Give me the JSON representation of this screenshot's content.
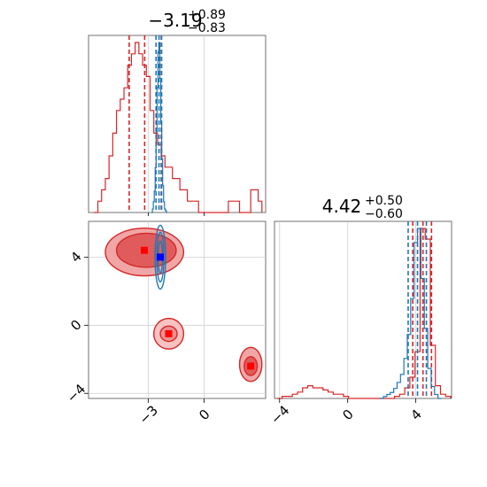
{
  "chart_data": {
    "type": "corner",
    "parameters": [
      {
        "value_text": "−3.19",
        "upper_text": "+0.89",
        "lower_text": "−0.83",
        "range": [
          -6.2,
          3.3
        ],
        "ticks": [
          -3,
          0
        ],
        "tick_labels": [
          "−3",
          "0"
        ]
      },
      {
        "value_text": "4.42",
        "upper_text": "+0.50",
        "lower_text": "−0.60",
        "range": [
          -4.3,
          6.1
        ],
        "ticks": [
          -4,
          0,
          4
        ],
        "tick_labels": [
          "−4",
          "0",
          "4"
        ]
      }
    ],
    "grid": true,
    "series": [
      {
        "color": "#d62728",
        "hist1": {
          "x": [
            -5.8,
            -5.6,
            -5.4,
            -5.2,
            -5.0,
            -4.8,
            -4.6,
            -4.4,
            -4.2,
            -4.0,
            -3.8,
            -3.6,
            -3.4,
            -3.2,
            -3.0,
            -2.8,
            -2.6,
            -2.4,
            -2.2,
            -2.0,
            -1.8,
            -1.6,
            -1.4,
            -1.2,
            -1.0,
            -0.8,
            -0.6,
            -0.4,
            -0.2,
            0.0,
            0.2,
            0.4,
            0.6,
            0.8,
            1.0,
            1.2,
            1.4,
            1.6,
            1.8,
            2.0,
            2.2,
            2.4,
            2.6,
            2.8,
            3.0
          ],
          "values": [
            0.0,
            0.01,
            0.02,
            0.03,
            0.05,
            0.07,
            0.09,
            0.1,
            0.11,
            0.13,
            0.14,
            0.15,
            0.14,
            0.13,
            0.12,
            0.09,
            0.07,
            0.06,
            0.05,
            0.04,
            0.04,
            0.03,
            0.03,
            0.02,
            0.02,
            0.01,
            0.01,
            0.01,
            0.0,
            0.0,
            0.0,
            0.0,
            0.0,
            0.0,
            0.0,
            0.0,
            0.01,
            0.01,
            0.01,
            0.0,
            0.0,
            0.0,
            0.02,
            0.02,
            0.01
          ],
          "quantiles": [
            -4.02,
            -3.19,
            -2.3
          ]
        },
        "hist2": {
          "x": [
            -4.0,
            -3.7,
            -3.4,
            -3.1,
            -2.8,
            -2.5,
            -2.2,
            -1.9,
            -1.6,
            -1.3,
            -1.0,
            -0.7,
            -0.4,
            -0.1,
            0.2,
            0.5,
            0.8,
            1.1,
            1.4,
            1.7,
            2.0,
            2.3,
            2.6,
            2.9,
            3.2,
            3.5,
            3.8,
            4.1,
            4.4,
            4.7,
            5.0,
            5.3,
            5.6,
            5.9
          ],
          "values": [
            0.0,
            0.01,
            0.01,
            0.02,
            0.03,
            0.05,
            0.06,
            0.05,
            0.05,
            0.04,
            0.03,
            0.02,
            0.02,
            0.01,
            0.0,
            0.0,
            0.0,
            0.0,
            0.0,
            0.0,
            0.0,
            0.0,
            0.0,
            0.01,
            0.02,
            0.05,
            0.1,
            0.22,
            0.8,
            0.75,
            0.25,
            0.06,
            0.02,
            0.01
          ],
          "quantiles": [
            3.82,
            4.42,
            4.92
          ]
        },
        "points": [
          [
            -3.21,
            4.4
          ],
          [
            -1.9,
            -0.5
          ],
          [
            2.5,
            -2.4
          ]
        ]
      },
      {
        "color": "#1f77b4",
        "hist1": {
          "x": [
            -2.8,
            -2.75,
            -2.7,
            -2.65,
            -2.6,
            -2.55,
            -2.5,
            -2.45,
            -2.4,
            -2.35,
            -2.3,
            -2.25,
            -2.2,
            -2.15,
            -2.1,
            -2.05,
            -2.0
          ],
          "values": [
            0.0,
            0.02,
            0.06,
            0.12,
            0.25,
            0.45,
            0.7,
            0.9,
            0.95,
            0.75,
            0.5,
            0.3,
            0.15,
            0.06,
            0.02,
            0.01,
            0.0
          ],
          "quantiles": [
            -2.58,
            -2.42,
            -2.28
          ]
        },
        "hist2": {
          "x": [
            2.0,
            2.2,
            2.4,
            2.6,
            2.8,
            3.0,
            3.2,
            3.4,
            3.6,
            3.8,
            4.0,
            4.2,
            4.4,
            4.6,
            4.8,
            5.0,
            5.2,
            5.4
          ],
          "values": [
            0.0,
            0.01,
            0.02,
            0.03,
            0.05,
            0.08,
            0.12,
            0.2,
            0.32,
            0.5,
            0.78,
            0.85,
            0.6,
            0.35,
            0.15,
            0.06,
            0.02,
            0.0
          ],
          "quantiles": [
            3.55,
            4.1,
            4.62
          ]
        },
        "points": [
          [
            -2.35,
            4.0
          ]
        ]
      }
    ]
  }
}
